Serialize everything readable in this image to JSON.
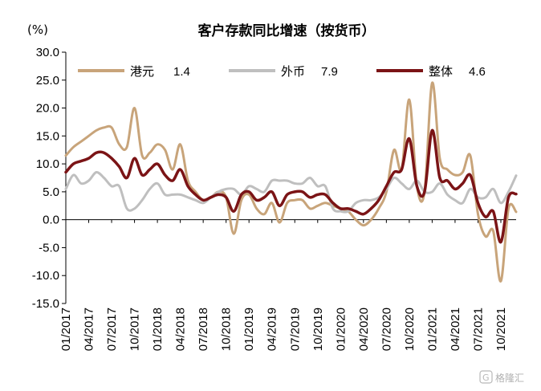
{
  "chart_data": {
    "type": "line",
    "title": "客户存款同比增速（按货币）",
    "ylabel": "(%)",
    "xlabel": "",
    "ylim": [
      -15,
      30
    ],
    "yticks": [
      "30.0",
      "25.0",
      "20.0",
      "15.0",
      "10.0",
      "5.0",
      "0.0",
      "-5.0",
      "-10.0",
      "-15.0"
    ],
    "ytick_values": [
      30,
      25,
      20,
      15,
      10,
      5,
      0,
      -5,
      -10,
      -15
    ],
    "xticks": [
      "01/2017",
      "04/2017",
      "07/2017",
      "10/2017",
      "01/2018",
      "04/2018",
      "07/2018",
      "10/2018",
      "01/2019",
      "04/2019",
      "07/2019",
      "10/2019",
      "01/2020",
      "04/2020",
      "07/2020",
      "10/2020",
      "01/2021",
      "04/2021",
      "07/2021",
      "10/2021"
    ],
    "xtick_months": [
      0,
      3,
      6,
      9,
      12,
      15,
      18,
      21,
      24,
      27,
      30,
      33,
      36,
      39,
      42,
      45,
      48,
      51,
      54,
      57
    ],
    "grid": false,
    "legend_position": "top",
    "series": [
      {
        "name": "港元",
        "latest": "1.4",
        "color": "#c8a47a",
        "values": [
          11.5,
          13,
          14,
          15,
          16,
          16.5,
          16.5,
          13.5,
          13,
          20,
          11.5,
          12,
          13.5,
          12.5,
          9,
          13.5,
          7,
          5,
          3.5,
          4,
          5,
          4,
          -2.5,
          3.5,
          4.5,
          2,
          1,
          3,
          -0.5,
          3,
          3.5,
          3.5,
          2,
          2.5,
          3,
          2.5,
          2,
          1.5,
          0,
          -1,
          0,
          2,
          5,
          12.5,
          9,
          21.5,
          6,
          5,
          24.5,
          11,
          9,
          8,
          8.5,
          11.5,
          1,
          -3,
          -2,
          -11,
          2,
          1.4
        ]
      },
      {
        "name": "外币",
        "latest": "7.9",
        "color": "#bfbfbf",
        "values": [
          5.5,
          8,
          6.5,
          7,
          8.5,
          7.5,
          6,
          6,
          2,
          2,
          3.5,
          5.5,
          6.5,
          4.5,
          4.5,
          4.5,
          4,
          3.5,
          3,
          4,
          5,
          5.5,
          5.5,
          4.5,
          6,
          5.5,
          5,
          7,
          7,
          7,
          6.5,
          6.5,
          7.5,
          6,
          6,
          2,
          1.5,
          1.5,
          3,
          3.5,
          3.5,
          4,
          5.5,
          7.5,
          6.5,
          5.5,
          7,
          5,
          5,
          6.5,
          4.5,
          3.5,
          3,
          5.5,
          4,
          4,
          5.5,
          3,
          5,
          7.9
        ]
      },
      {
        "name": "整体",
        "latest": "4.6",
        "color": "#7b1416",
        "values": [
          8.5,
          10,
          10.5,
          11,
          12,
          12,
          11,
          9.5,
          7.5,
          11,
          8,
          9,
          10,
          8,
          7,
          9,
          6,
          4.5,
          3.5,
          4,
          4.5,
          4,
          1.5,
          4.5,
          5,
          3.5,
          4,
          5,
          2.5,
          4.5,
          5,
          5,
          4,
          4.5,
          4.5,
          3,
          2,
          2,
          1.5,
          1,
          2,
          3.5,
          6,
          8.5,
          9,
          14.5,
          6,
          5,
          16,
          7.5,
          7,
          5.5,
          6.5,
          8,
          3,
          0.5,
          1.5,
          -4,
          4,
          4.6
        ]
      }
    ]
  },
  "watermark": "格隆汇"
}
